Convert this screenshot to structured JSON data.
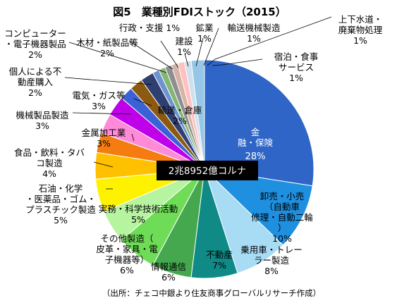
{
  "chart_data": {
    "type": "pie",
    "title": "図5　業種別FDIストック（2015）",
    "center_label": "2兆8952億コルナ",
    "source": "（出所：チェコ中銀より住友商事グローバルリサーチ作成）",
    "slices": [
      {
        "label": "金融・保険",
        "value": 28,
        "pct": "28%",
        "color": "#2e65c6"
      },
      {
        "label": "卸売・小売（自動車修理・自動二輪）",
        "value": 10,
        "pct": "10%",
        "color": "#1f8fe0"
      },
      {
        "label": "乗用車・トレーラー製造",
        "value": 8,
        "pct": "8%",
        "color": "#a8dcf5"
      },
      {
        "label": "不動産",
        "value": 7,
        "pct": "7%",
        "color": "#0f8a86"
      },
      {
        "label": "情報通信",
        "value": 6,
        "pct": "6%",
        "color": "#45a84e"
      },
      {
        "label": "その他製造（皮革・家具・電子機器等）",
        "value": 6,
        "pct": "6%",
        "color": "#6fdc58"
      },
      {
        "label": "実務・科学技術活動",
        "value": 5,
        "pct": "5%",
        "color": "#b7f4a0"
      },
      {
        "label": "石油・化学・医薬品・ゴム・プラスチック製造",
        "value": 5,
        "pct": "5%",
        "color": "#fff200"
      },
      {
        "label": "食品・飲料・タバコ製造",
        "value": 4,
        "pct": "4%",
        "color": "#ffc000"
      },
      {
        "label": "金属加工業",
        "value": 3,
        "pct": "3%",
        "color": "#f47c10"
      },
      {
        "label": "機械製品製造",
        "value": 3,
        "pct": "3%",
        "color": "#ff8ad8"
      },
      {
        "label": "電気・ガス等",
        "value": 3,
        "pct": "3%",
        "color": "#c000e8"
      },
      {
        "label": "個人による不動産購入",
        "value": 2,
        "pct": "2%",
        "color": "#3a62d6"
      },
      {
        "label": "コンピューター・電子機器製品",
        "value": 2,
        "pct": "2%",
        "color": "#8b5a10"
      },
      {
        "label": "木材・紙製品等",
        "value": 2,
        "pct": "2%",
        "color": "#2f3f6f"
      },
      {
        "label": "行政・支援",
        "value": 1,
        "pct": "1%",
        "color": "#6c93d2"
      },
      {
        "label": "建設",
        "value": 1,
        "pct": "1%",
        "color": "#83b673"
      },
      {
        "label": "鉱業",
        "value": 1,
        "pct": "1%",
        "color": "#8f8f8f"
      },
      {
        "label": "輸送機械製造",
        "value": 1,
        "pct": "1%",
        "color": "#d6b3a6"
      },
      {
        "label": "上下水道・廃棄物処理",
        "value": 1,
        "pct": "1%",
        "color": "#ffc0c0"
      },
      {
        "label": "宿泊・食事サービス",
        "value": 1,
        "pct": "1%",
        "color": "#cfe0ee"
      },
      {
        "label": "輸送・倉庫",
        "value": 2,
        "pct": "2%",
        "color": "#97c7e6"
      }
    ]
  }
}
